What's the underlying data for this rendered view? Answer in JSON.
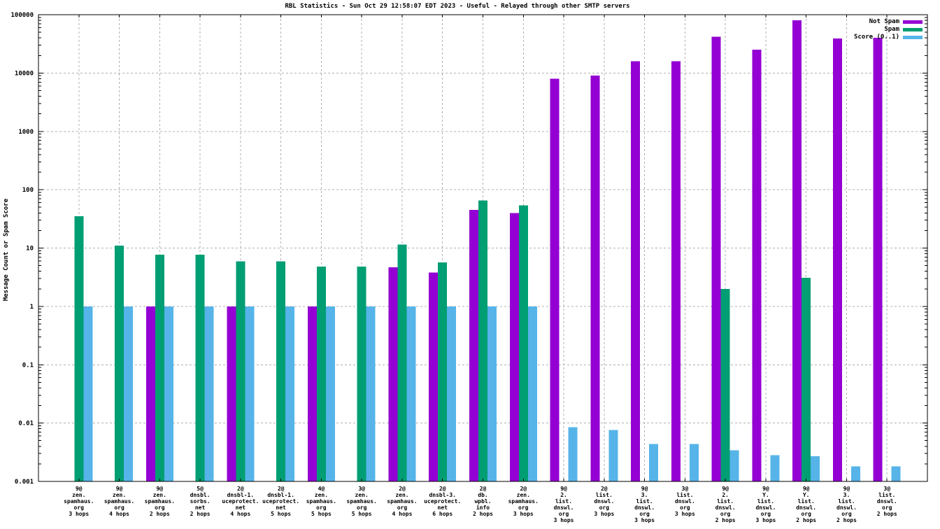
{
  "title": "RBL Statistics - Sun Oct 29 12:58:07 EDT 2023 - Useful - Relayed through other SMTP servers",
  "ylabel": "Message Count or Spam Score",
  "chart_data": {
    "type": "bar",
    "y_scale": "log",
    "ylim": [
      0.001,
      100000
    ],
    "grid": true,
    "legend_position": "top-right-inside",
    "colors": {
      "not_spam": "#9400d3",
      "spam": "#009e73",
      "score": "#56b4e9",
      "grid": "#b0b0b0",
      "border": "#000000",
      "text": "#000000",
      "background": "#ffffff"
    },
    "yticks": [
      {
        "value": 100000,
        "label": "100000"
      },
      {
        "value": 10000,
        "label": "10000"
      },
      {
        "value": 1000,
        "label": "1000"
      },
      {
        "value": 100,
        "label": "100"
      },
      {
        "value": 10,
        "label": "10"
      },
      {
        "value": 1,
        "label": "1"
      },
      {
        "value": 0.1,
        "label": "0.1"
      },
      {
        "value": 0.01,
        "label": "0.01"
      },
      {
        "value": 0.001,
        "label": "0.001"
      }
    ],
    "series": [
      {
        "name": "Not Spam",
        "key": "not_spam"
      },
      {
        "name": "Spam",
        "key": "spam"
      },
      {
        "name": "Score (0..1)",
        "key": "score"
      }
    ],
    "categories": [
      {
        "label_lines": [
          "9@",
          "zen.",
          "spamhaus.",
          "org",
          "3 hops"
        ],
        "not_spam": null,
        "spam": 35,
        "score": 1
      },
      {
        "label_lines": [
          "9@",
          "zen.",
          "spamhaus.",
          "org",
          "4 hops"
        ],
        "not_spam": null,
        "spam": 11,
        "score": 1
      },
      {
        "label_lines": [
          "9@",
          "zen.",
          "spamhaus.",
          "org",
          "2 hops"
        ],
        "not_spam": 1,
        "spam": 7.7,
        "score": 1
      },
      {
        "label_lines": [
          "5@",
          "dnsbl.",
          "sorbs.",
          "net",
          "2 hops"
        ],
        "not_spam": null,
        "spam": 7.7,
        "score": 1
      },
      {
        "label_lines": [
          "2@",
          "dnsbl-1.",
          "uceprotect.",
          "net",
          "4 hops"
        ],
        "not_spam": 1,
        "spam": 5.9,
        "score": 1
      },
      {
        "label_lines": [
          "2@",
          "dnsbl-1.",
          "uceprotect.",
          "net",
          "5 hops"
        ],
        "not_spam": null,
        "spam": 5.9,
        "score": 1
      },
      {
        "label_lines": [
          "4@",
          "zen.",
          "spamhaus.",
          "org",
          "5 hops"
        ],
        "not_spam": 1,
        "spam": 4.8,
        "score": 1
      },
      {
        "label_lines": [
          "3@",
          "zen.",
          "spamhaus.",
          "org",
          "5 hops"
        ],
        "not_spam": null,
        "spam": 4.8,
        "score": 1
      },
      {
        "label_lines": [
          "2@",
          "zen.",
          "spamhaus.",
          "org",
          "4 hops"
        ],
        "not_spam": 4.7,
        "spam": 11.5,
        "score": 1
      },
      {
        "label_lines": [
          "2@",
          "dnsbl-3.",
          "uceprotect.",
          "net",
          "6 hops"
        ],
        "not_spam": 3.8,
        "spam": 5.7,
        "score": 1
      },
      {
        "label_lines": [
          "2@",
          "db.",
          "wpbl.",
          "info",
          "2 hops"
        ],
        "not_spam": 45,
        "spam": 65,
        "score": 1
      },
      {
        "label_lines": [
          "2@",
          "zen.",
          "spamhaus.",
          "org",
          "3 hops"
        ],
        "not_spam": 40,
        "spam": 54,
        "score": 1
      },
      {
        "label_lines": [
          "9@",
          "2.",
          "list.",
          "dnswl.",
          "org",
          "3 hops"
        ],
        "not_spam": 8000,
        "spam": null,
        "score": 0.0085
      },
      {
        "label_lines": [
          "2@",
          "list.",
          "dnswl.",
          "org",
          "3 hops"
        ],
        "not_spam": 9000,
        "spam": null,
        "score": 0.0076
      },
      {
        "label_lines": [
          "9@",
          "3.",
          "list.",
          "dnswl.",
          "org",
          "3 hops"
        ],
        "not_spam": 16000,
        "spam": null,
        "score": 0.0044
      },
      {
        "label_lines": [
          "3@",
          "list.",
          "dnswl.",
          "org",
          "3 hops"
        ],
        "not_spam": 16000,
        "spam": null,
        "score": 0.0044
      },
      {
        "label_lines": [
          "9@",
          "2.",
          "list.",
          "dnswl.",
          "org",
          "2 hops"
        ],
        "not_spam": 42000,
        "spam": 2,
        "score": 0.0034
      },
      {
        "label_lines": [
          "9@",
          "Y.",
          "list.",
          "dnswl.",
          "org",
          "3 hops"
        ],
        "not_spam": 25000,
        "spam": null,
        "score": 0.0028
      },
      {
        "label_lines": [
          "9@",
          "Y.",
          "list.",
          "dnswl.",
          "org",
          "2 hops"
        ],
        "not_spam": 80000,
        "spam": 3.1,
        "score": 0.0027
      },
      {
        "label_lines": [
          "9@",
          "3.",
          "list.",
          "dnswl.",
          "org",
          "2 hops"
        ],
        "not_spam": 39000,
        "spam": null,
        "score": 0.0018
      },
      {
        "label_lines": [
          "3@",
          "list.",
          "dnswl.",
          "org",
          "2 hops"
        ],
        "not_spam": 40000,
        "spam": null,
        "score": 0.0018
      }
    ]
  }
}
